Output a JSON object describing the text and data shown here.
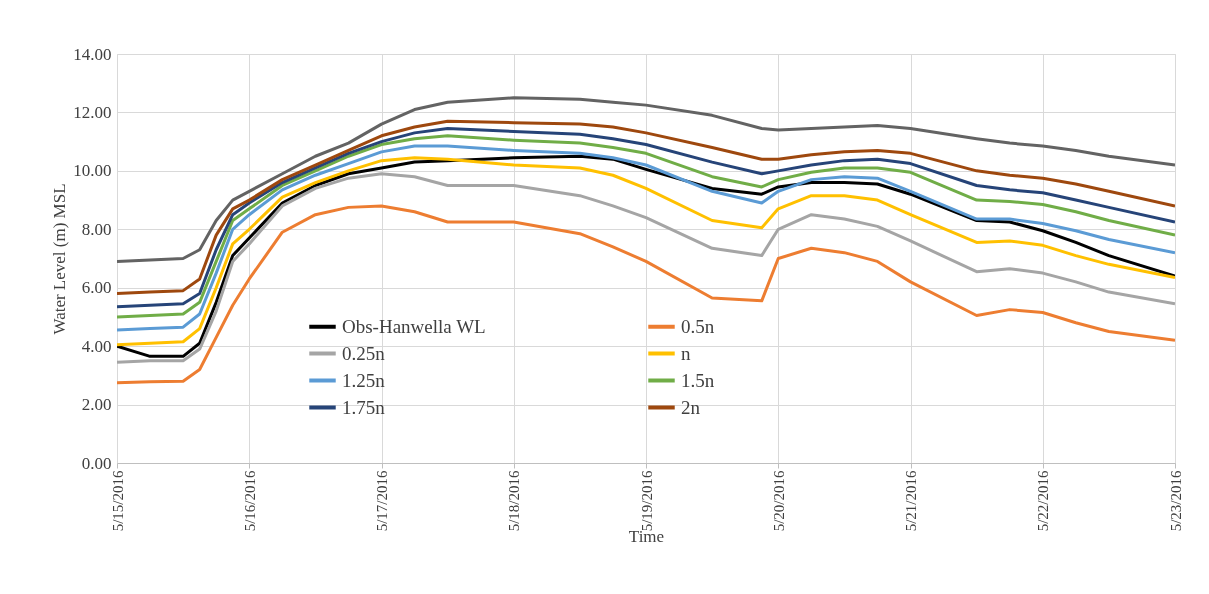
{
  "chart_data": {
    "type": "line",
    "xlabel": "Time",
    "ylabel": "Water Level (m) MSL",
    "x": [
      "2016-05-15T00:00",
      "2016-05-15T06:00",
      "2016-05-15T12:00",
      "2016-05-15T15:00",
      "2016-05-15T18:00",
      "2016-05-15T21:00",
      "2016-05-16T00:00",
      "2016-05-16T06:00",
      "2016-05-16T12:00",
      "2016-05-16T18:00",
      "2016-05-17T00:00",
      "2016-05-17T06:00",
      "2016-05-17T12:00",
      "2016-05-18T00:00",
      "2016-05-18T12:00",
      "2016-05-18T18:00",
      "2016-05-19T00:00",
      "2016-05-19T12:00",
      "2016-05-19T21:00",
      "2016-05-20T00:00",
      "2016-05-20T06:00",
      "2016-05-20T12:00",
      "2016-05-20T18:00",
      "2016-05-21T00:00",
      "2016-05-21T12:00",
      "2016-05-21T18:00",
      "2016-05-22T00:00",
      "2016-05-22T06:00",
      "2016-05-22T12:00",
      "2016-05-23T00:00"
    ],
    "series": [
      {
        "color": "#636363",
        "values": [
          6.9,
          6.95,
          7.0,
          7.3,
          8.3,
          9.0,
          9.3,
          9.9,
          10.5,
          10.95,
          11.6,
          12.1,
          12.35,
          12.5,
          12.45,
          12.35,
          12.25,
          11.9,
          11.45,
          11.4,
          11.45,
          11.5,
          11.55,
          11.45,
          11.1,
          10.95,
          10.85,
          10.7,
          10.5,
          10.2
        ]
      },
      {
        "name": "Obs-Hanwella WL",
        "color": "#000000",
        "values": [
          4.0,
          3.65,
          3.65,
          4.1,
          5.5,
          7.1,
          7.7,
          8.9,
          9.5,
          9.9,
          10.1,
          10.3,
          10.35,
          10.45,
          10.5,
          10.4,
          10.05,
          9.4,
          9.2,
          9.45,
          9.6,
          9.6,
          9.55,
          9.2,
          8.3,
          8.25,
          7.95,
          7.55,
          7.1,
          6.4
        ]
      },
      {
        "name": "0.5n",
        "color": "#ed7d31",
        "values": [
          2.75,
          2.78,
          2.8,
          3.2,
          4.3,
          5.4,
          6.3,
          7.9,
          8.5,
          8.75,
          8.8,
          8.6,
          8.25,
          8.25,
          7.85,
          7.4,
          6.9,
          5.65,
          5.55,
          7.0,
          7.35,
          7.2,
          6.9,
          6.2,
          5.05,
          5.25,
          5.15,
          4.8,
          4.5,
          4.2
        ]
      },
      {
        "name": "0.25n",
        "color": "#a5a5a5",
        "values": [
          3.45,
          3.5,
          3.5,
          3.9,
          5.2,
          6.9,
          7.5,
          8.8,
          9.4,
          9.75,
          9.9,
          9.8,
          9.5,
          9.5,
          9.15,
          8.8,
          8.4,
          7.35,
          7.1,
          8.0,
          8.5,
          8.35,
          8.1,
          7.6,
          6.55,
          6.65,
          6.5,
          6.2,
          5.85,
          5.45
        ]
      },
      {
        "name": "n",
        "color": "#ffc000",
        "values": [
          4.05,
          4.1,
          4.15,
          4.6,
          6.0,
          7.5,
          8.0,
          9.1,
          9.6,
          10.0,
          10.35,
          10.45,
          10.4,
          10.2,
          10.1,
          9.85,
          9.4,
          8.3,
          8.05,
          8.7,
          9.15,
          9.15,
          9.0,
          8.5,
          7.55,
          7.6,
          7.45,
          7.1,
          6.8,
          6.35
        ]
      },
      {
        "name": "1.25n",
        "color": "#5b9bd5",
        "values": [
          4.55,
          4.6,
          4.65,
          5.1,
          6.5,
          8.0,
          8.5,
          9.35,
          9.85,
          10.25,
          10.65,
          10.85,
          10.85,
          10.7,
          10.6,
          10.45,
          10.2,
          9.3,
          8.9,
          9.3,
          9.7,
          9.8,
          9.75,
          9.3,
          8.35,
          8.35,
          8.2,
          7.95,
          7.65,
          7.2
        ]
      },
      {
        "name": "1.5n",
        "color": "#70ad47",
        "values": [
          5.0,
          5.05,
          5.1,
          5.5,
          6.9,
          8.3,
          8.7,
          9.5,
          10.0,
          10.5,
          10.9,
          11.1,
          11.2,
          11.05,
          10.95,
          10.8,
          10.6,
          9.8,
          9.45,
          9.7,
          9.95,
          10.1,
          10.1,
          9.95,
          9.0,
          8.95,
          8.85,
          8.6,
          8.3,
          7.8
        ]
      },
      {
        "name": "1.75n",
        "color": "#264478",
        "values": [
          5.35,
          5.4,
          5.45,
          5.8,
          7.3,
          8.5,
          8.9,
          9.6,
          10.1,
          10.6,
          11.0,
          11.3,
          11.45,
          11.35,
          11.25,
          11.1,
          10.9,
          10.3,
          9.9,
          10.0,
          10.2,
          10.35,
          10.4,
          10.25,
          9.5,
          9.35,
          9.25,
          9.0,
          8.75,
          8.25
        ]
      },
      {
        "name": "2n",
        "color": "#9e480e",
        "values": [
          5.8,
          5.85,
          5.9,
          6.3,
          7.8,
          8.7,
          9.0,
          9.7,
          10.2,
          10.7,
          11.2,
          11.5,
          11.7,
          11.65,
          11.6,
          11.5,
          11.3,
          10.8,
          10.4,
          10.4,
          10.55,
          10.65,
          10.7,
          10.6,
          10.0,
          9.85,
          9.75,
          9.55,
          9.3,
          8.8
        ]
      }
    ],
    "ylim": [
      0,
      14
    ],
    "yticks": [
      {
        "value": 0,
        "label": "0.00"
      },
      {
        "value": 2,
        "label": "2.00"
      },
      {
        "value": 4,
        "label": "4.00"
      },
      {
        "value": 6,
        "label": "6.00"
      },
      {
        "value": 8,
        "label": "8.00"
      },
      {
        "value": 10,
        "label": "10.00"
      },
      {
        "value": 12,
        "label": "12.00"
      },
      {
        "value": 14,
        "label": "14.00"
      }
    ],
    "xlim": [
      "2016-05-15",
      "2016-05-23"
    ],
    "xticks": [
      {
        "value": "2016-05-15",
        "label": "5/15/2016"
      },
      {
        "value": "2016-05-16",
        "label": "5/16/2016"
      },
      {
        "value": "2016-05-17",
        "label": "5/17/2016"
      },
      {
        "value": "2016-05-18",
        "label": "5/18/2016"
      },
      {
        "value": "2016-05-19",
        "label": "5/19/2016"
      },
      {
        "value": "2016-05-20",
        "label": "5/20/2016"
      },
      {
        "value": "2016-05-21",
        "label": "5/21/2016"
      },
      {
        "value": "2016-05-22",
        "label": "5/22/2016"
      },
      {
        "value": "2016-05-23",
        "label": "5/23/2016"
      }
    ],
    "grid": true,
    "legend": "bottom",
    "marker": "none",
    "line_style": "solid"
  }
}
